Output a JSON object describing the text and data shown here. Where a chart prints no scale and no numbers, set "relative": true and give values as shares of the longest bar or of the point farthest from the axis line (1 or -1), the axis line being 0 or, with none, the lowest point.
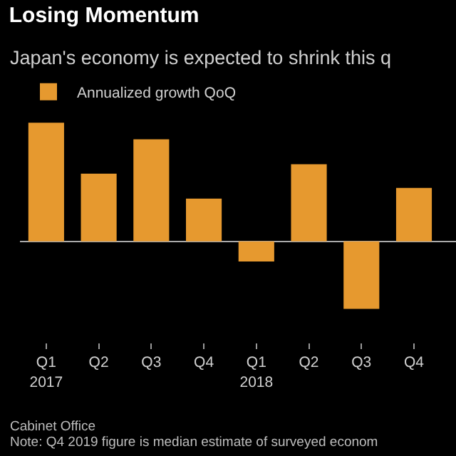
{
  "chart_data": {
    "type": "bar",
    "title": "Losing Momentum",
    "subtitle": "Japan's economy is expected to shrink this q",
    "categories": [
      "Q1\n2017",
      "Q2",
      "Q3",
      "Q4",
      "Q1\n2018",
      "Q2",
      "Q3",
      "Q4"
    ],
    "series": [
      {
        "name": "Annualized growth QoQ",
        "color": "#e6992f",
        "values": [
          1,
          0.57,
          0.86,
          0.36,
          -0.17,
          0.65,
          -0.57,
          0.45
        ]
      }
    ],
    "relative": true,
    "legend": "top left",
    "grid": false,
    "annotations": [
      "Cabinet Office",
      "Note: Q4 2019 figure is median estimate of surveyed econom"
    ]
  }
}
